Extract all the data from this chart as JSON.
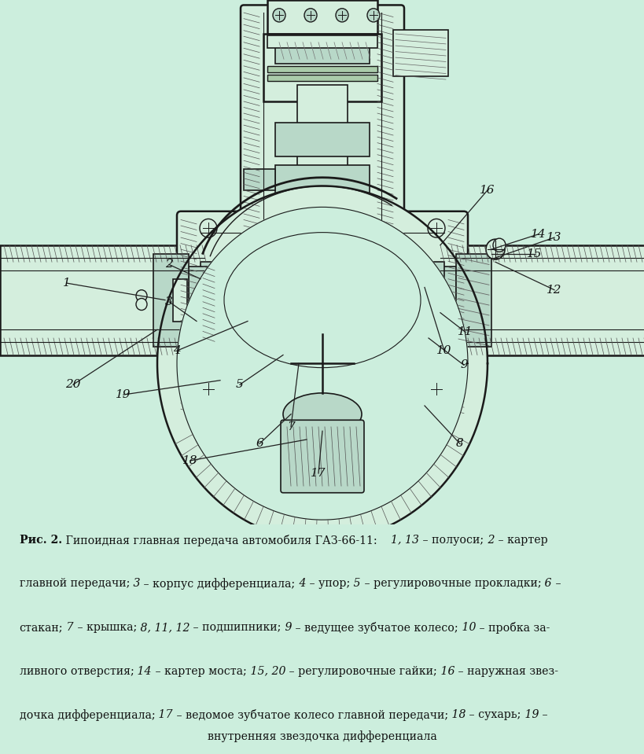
{
  "bg_color": "#cceedd",
  "line_color": "#1a1a1a",
  "hatch_color": "#333333",
  "fill_light": "#d4eedd",
  "fill_medium": "#b8d8c8",
  "fig_width": 8.2,
  "fig_height": 9.59,
  "dpi": 100,
  "caption_fontsize": 10.2,
  "label_fontsize": 11,
  "caption_bold": "Рис. 2.",
  "caption_normal_1": " Гипоидная главная передача автомобиля ГАЗ-66-11:",
  "caption_italic_1": "1, 13",
  "caption_normal_2": " – полуоси;",
  "caption_italic_2": " 2",
  "caption_normal_3": " – картер",
  "line2_normal_1": "главной передачи;",
  "line2_italic_1": " 3",
  "line2_normal_2": " – корпус дифференциала;",
  "line2_italic_2": " 4",
  "line2_normal_3": " – упор;",
  "line2_italic_3": " 5",
  "line2_normal_4": " – регулировочные прокладки;",
  "line2_italic_4": " 6",
  "line2_normal_5": " –",
  "line3_normal_1": "стакан;",
  "line3_italic_1": " 7",
  "line3_normal_2": " – крышка;",
  "line3_italic_2": " 8, 11, 12",
  "line3_normal_3": " – подшипники;",
  "line3_italic_3": " 9",
  "line3_normal_4": " – ведущее зубчатое колесо;",
  "line3_italic_4": " 10",
  "line3_normal_5": " – пробка за-",
  "line4_normal_1": "ливного отверстия;",
  "line4_italic_1": " 14",
  "line4_normal_2": " – картер моста;",
  "line4_italic_2": " 15, 20",
  "line4_normal_3": " – регулировочные гайки;",
  "line4_italic_3": " 16",
  "line4_normal_4": " – наружная звез-",
  "line5_normal_1": "дочка дифференциала;",
  "line5_italic_1": " 17",
  "line5_normal_2": " – ведомое зубчатое колесо главной передачи;",
  "line5_italic_2": " 18",
  "line5_normal_3": " – сухарь;",
  "line5_italic_3": " 19",
  "line5_normal_4": " –",
  "line6_center": "внутренняя звездочка дифференциала",
  "numbers": [
    "1",
    "2",
    "3",
    "4",
    "5",
    "6",
    "7",
    "8",
    "9",
    "10",
    "11",
    "12",
    "13",
    "14",
    "15",
    "16",
    "17",
    "18",
    "19",
    "20"
  ],
  "num_x": [
    85,
    215,
    215,
    225,
    305,
    330,
    370,
    585,
    590,
    565,
    592,
    705,
    705,
    685,
    680,
    620,
    405,
    242,
    157,
    93
  ],
  "num_y": [
    335,
    313,
    357,
    415,
    455,
    525,
    505,
    525,
    432,
    415,
    393,
    343,
    281,
    277,
    300,
    225,
    560,
    545,
    467,
    455
  ]
}
